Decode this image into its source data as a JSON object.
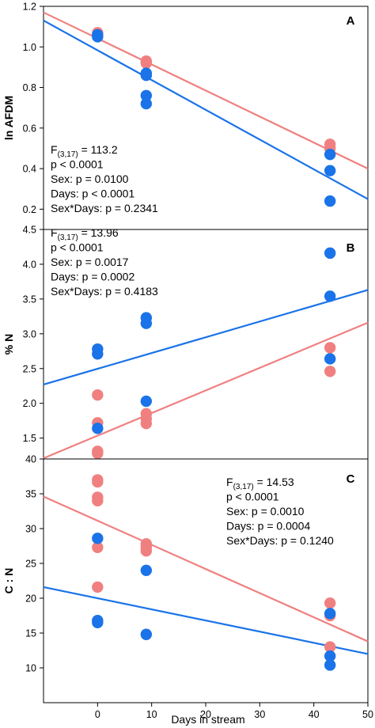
{
  "colors": {
    "female": "#f08080",
    "male": "#1a73e8",
    "axis": "#000000"
  },
  "xlabel": "Days in stream",
  "chart_data": [
    {
      "type": "scatter",
      "panel": "A",
      "ylabel": "ln AFDM",
      "xlim": [
        -10,
        50
      ],
      "ylim": [
        0.1,
        1.2
      ],
      "xticks": [],
      "yticks": [
        0.2,
        0.4,
        0.6,
        0.8,
        1.0,
        1.2
      ],
      "ytick_labels": [
        "0.2",
        "0.4",
        "0.6",
        "0.8",
        "1.0",
        "1.2"
      ],
      "stats": [
        "F",
        "(3,17)",
        " = 113.2",
        "p < 0.0001",
        "Sex: p = 0.0100",
        "Days: p < 0.0001",
        "Sex*Days: p = 0.2341"
      ],
      "series": [
        {
          "color": "#f08080",
          "points": [
            [
              0,
              1.07
            ],
            [
              0,
              1.06
            ],
            [
              9,
              0.93
            ],
            [
              9,
              0.92
            ],
            [
              43,
              0.52
            ],
            [
              43,
              0.5
            ]
          ],
          "line": [
            [
              -10,
              1.17
            ],
            [
              50,
              0.4
            ]
          ]
        },
        {
          "color": "#1a73e8",
          "points": [
            [
              0,
              1.06
            ],
            [
              0,
              1.05
            ],
            [
              9,
              0.87
            ],
            [
              9,
              0.86
            ],
            [
              9,
              0.76
            ],
            [
              9,
              0.72
            ],
            [
              43,
              0.47
            ],
            [
              43,
              0.39
            ],
            [
              43,
              0.24
            ]
          ],
          "line": [
            [
              -10,
              1.13
            ],
            [
              50,
              0.25
            ]
          ]
        }
      ]
    },
    {
      "type": "scatter",
      "panel": "B",
      "ylabel": "% N",
      "xlim": [
        -10,
        50
      ],
      "ylim": [
        1.2,
        4.5
      ],
      "xticks": [],
      "yticks": [
        1.5,
        2.0,
        2.5,
        3.0,
        3.5,
        4.0,
        4.5
      ],
      "ytick_labels": [
        "1.5",
        "2.0",
        "2.5",
        "3.0",
        "3.5",
        "4.0",
        "4.5"
      ],
      "stats": [
        "F",
        "(3,17)",
        " = 13.96",
        "p < 0.0001",
        "Sex: p = 0.0017",
        "Days: p = 0.0002",
        "Sex*Days: p = 0.4183"
      ],
      "series": [
        {
          "color": "#f08080",
          "points": [
            [
              0,
              2.12
            ],
            [
              0,
              1.72
            ],
            [
              0,
              1.31
            ],
            [
              0,
              1.28
            ],
            [
              9,
              1.85
            ],
            [
              9,
              1.78
            ],
            [
              9,
              1.71
            ],
            [
              43,
              2.8
            ],
            [
              43,
              2.46
            ]
          ],
          "line": [
            [
              -10,
              1.21
            ],
            [
              50,
              3.16
            ]
          ]
        },
        {
          "color": "#1a73e8",
          "points": [
            [
              0,
              2.78
            ],
            [
              0,
              2.71
            ],
            [
              0,
              1.64
            ],
            [
              9,
              3.23
            ],
            [
              9,
              3.15
            ],
            [
              9,
              2.03
            ],
            [
              43,
              4.16
            ],
            [
              43,
              3.54
            ],
            [
              43,
              2.64
            ]
          ],
          "line": [
            [
              -10,
              2.27
            ],
            [
              50,
              3.63
            ]
          ]
        }
      ]
    },
    {
      "type": "scatter",
      "panel": "C",
      "ylabel": "C : N",
      "xlim": [
        -10,
        50
      ],
      "ylim": [
        5,
        40
      ],
      "xticks": [
        0,
        10,
        20,
        30,
        40,
        50
      ],
      "xtick_labels": [
        "0",
        "10",
        "20",
        "30",
        "40",
        "50"
      ],
      "yticks": [
        10,
        15,
        20,
        25,
        30,
        35,
        40
      ],
      "ytick_labels": [
        "10",
        "15",
        "20",
        "25",
        "30",
        "35",
        "40"
      ],
      "stats": [
        "F",
        "(3,17)",
        " = 14.53",
        "p < 0.0001",
        "Sex: p = 0.0010",
        "Days: p = 0.0004",
        "Sex*Days: p = 0.1240"
      ],
      "series": [
        {
          "color": "#f08080",
          "points": [
            [
              0,
              37.0
            ],
            [
              0,
              36.7
            ],
            [
              0,
              34.5
            ],
            [
              0,
              34.0
            ],
            [
              0,
              27.3
            ],
            [
              0,
              21.6
            ],
            [
              9,
              27.8
            ],
            [
              9,
              27.3
            ],
            [
              9,
              26.8
            ],
            [
              43,
              19.3
            ],
            [
              43,
              13.0
            ],
            [
              43,
              17.5
            ]
          ],
          "line": [
            [
              -10,
              34.6
            ],
            [
              50,
              13.8
            ]
          ]
        },
        {
          "color": "#1a73e8",
          "points": [
            [
              0,
              28.6
            ],
            [
              0,
              16.8
            ],
            [
              0,
              16.5
            ],
            [
              9,
              24.0
            ],
            [
              9,
              14.8
            ],
            [
              43,
              17.8
            ],
            [
              43,
              11.7
            ],
            [
              43,
              10.4
            ]
          ],
          "line": [
            [
              -10,
              21.6
            ],
            [
              50,
              12.0
            ]
          ]
        }
      ]
    }
  ]
}
